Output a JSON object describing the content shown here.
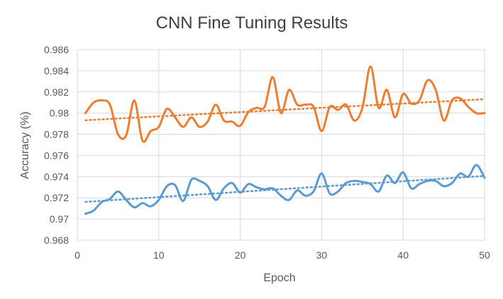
{
  "chart_data": {
    "type": "line",
    "title": "CNN Fine Tuning Results",
    "xlabel": "Epoch",
    "ylabel": "Accuracy (%)",
    "xlim": [
      0,
      50
    ],
    "ylim": [
      0.968,
      0.986
    ],
    "x_ticks": [
      "0",
      "10",
      "20",
      "30",
      "40",
      "50"
    ],
    "y_ticks": [
      "0.968",
      "0.97",
      "0.972",
      "0.974",
      "0.976",
      "0.978",
      "0.98",
      "0.982",
      "0.984",
      "0.986"
    ],
    "grid": true,
    "legend": "none",
    "trendlines": "linear, dotted, per series",
    "x": [
      1,
      2,
      3,
      4,
      5,
      6,
      7,
      8,
      9,
      10,
      11,
      12,
      13,
      14,
      15,
      16,
      17,
      18,
      19,
      20,
      21,
      22,
      23,
      24,
      25,
      26,
      27,
      28,
      29,
      30,
      31,
      32,
      33,
      34,
      35,
      36,
      37,
      38,
      39,
      40,
      41,
      42,
      43,
      44,
      45,
      46,
      47,
      48,
      49,
      50
    ],
    "series": [
      {
        "color": "#ED7D31",
        "values": [
          0.98,
          0.981,
          0.9812,
          0.9808,
          0.978,
          0.9779,
          0.9812,
          0.9774,
          0.9783,
          0.9787,
          0.9804,
          0.9796,
          0.9787,
          0.9796,
          0.9787,
          0.9792,
          0.9808,
          0.9793,
          0.9792,
          0.9788,
          0.9801,
          0.9805,
          0.9806,
          0.9834,
          0.98,
          0.9822,
          0.9808,
          0.9808,
          0.9806,
          0.9783,
          0.9806,
          0.9803,
          0.9808,
          0.9793,
          0.9805,
          0.9844,
          0.9805,
          0.9822,
          0.9796,
          0.9818,
          0.9809,
          0.9812,
          0.9831,
          0.9822,
          0.9793,
          0.9812,
          0.9814,
          0.9806,
          0.98,
          0.98
        ]
      },
      {
        "color": "#5B9BD5",
        "values": [
          0.9705,
          0.9708,
          0.9716,
          0.9719,
          0.9726,
          0.9718,
          0.9711,
          0.9715,
          0.9712,
          0.9718,
          0.9731,
          0.9732,
          0.9717,
          0.9737,
          0.9736,
          0.9731,
          0.9718,
          0.9729,
          0.9734,
          0.9725,
          0.9733,
          0.973,
          0.9728,
          0.9729,
          0.9722,
          0.9718,
          0.9727,
          0.9722,
          0.9726,
          0.9743,
          0.9724,
          0.9726,
          0.9734,
          0.9736,
          0.9735,
          0.9733,
          0.9726,
          0.9741,
          0.9734,
          0.9744,
          0.9729,
          0.9733,
          0.9736,
          0.9736,
          0.9731,
          0.9734,
          0.9743,
          0.974,
          0.9751,
          0.9739
        ]
      }
    ]
  }
}
